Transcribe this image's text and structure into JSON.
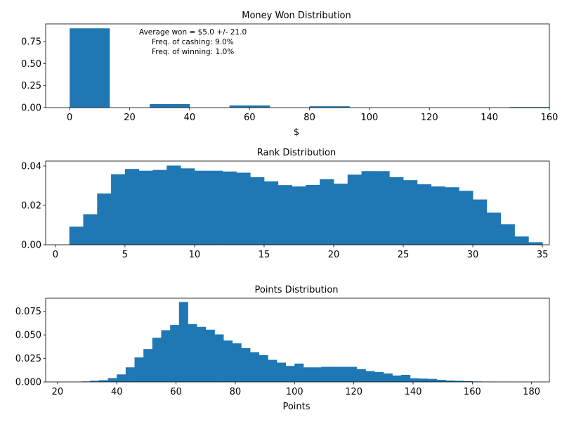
{
  "figure": {
    "background": "#ffffff",
    "bar_color": "#1f77b4"
  },
  "chart_data": [
    {
      "type": "histogram",
      "title": "Money Won Distribution",
      "xlabel": "$",
      "ylabel": "",
      "xlim": [
        -8,
        160
      ],
      "ylim": [
        0,
        0.95
      ],
      "xticks": [
        0,
        20,
        40,
        60,
        80,
        100,
        120,
        140,
        160
      ],
      "yticks": [
        "0.00",
        "0.25",
        "0.50",
        "0.75"
      ],
      "bins": [
        {
          "x0": 0,
          "x1": 13.3,
          "value": 0.9
        },
        {
          "x0": 26.7,
          "x1": 40,
          "value": 0.04
        },
        {
          "x0": 53.3,
          "x1": 66.7,
          "value": 0.025
        },
        {
          "x0": 80,
          "x1": 93.3,
          "value": 0.015
        },
        {
          "x0": 146.7,
          "x1": 160,
          "value": 0.007
        }
      ],
      "annotation": [
        "Average won = $5.0 +/- 21.0",
        "Freq. of cashing: 9.0%",
        "Freq. of winning: 1.0%"
      ]
    },
    {
      "type": "histogram",
      "title": "Rank Distribution",
      "xlabel": "",
      "ylabel": "",
      "xlim": [
        -0.7,
        35.5
      ],
      "ylim": [
        0,
        0.0425
      ],
      "xticks": [
        0,
        5,
        10,
        15,
        20,
        25,
        30,
        35
      ],
      "yticks": [
        "0.00",
        "0.02",
        "0.04"
      ],
      "bin_start": 1,
      "bin_width": 1,
      "values": [
        0.0092,
        0.0155,
        0.026,
        0.0358,
        0.0385,
        0.0376,
        0.038,
        0.0402,
        0.0388,
        0.0376,
        0.0376,
        0.0372,
        0.0366,
        0.0343,
        0.0322,
        0.0303,
        0.0296,
        0.0304,
        0.0333,
        0.031,
        0.0356,
        0.0374,
        0.0374,
        0.0343,
        0.0328,
        0.0307,
        0.0296,
        0.0292,
        0.0274,
        0.023,
        0.0163,
        0.0104,
        0.0042,
        0.0013
      ]
    },
    {
      "type": "histogram",
      "title": "Points Distribution",
      "xlabel": "Points",
      "ylabel": "",
      "xlim": [
        16,
        186
      ],
      "ylim": [
        0,
        0.089
      ],
      "xticks": [
        20,
        40,
        60,
        80,
        100,
        120,
        140,
        160,
        180
      ],
      "yticks": [
        "0.000",
        "0.025",
        "0.050",
        "0.075"
      ],
      "bin_start": 28,
      "bin_width": 3,
      "values": [
        0.0005,
        0.0012,
        0.0018,
        0.004,
        0.008,
        0.0155,
        0.026,
        0.035,
        0.047,
        0.055,
        0.0605,
        0.085,
        0.0615,
        0.0585,
        0.0555,
        0.0505,
        0.044,
        0.041,
        0.036,
        0.0315,
        0.0285,
        0.0235,
        0.0205,
        0.017,
        0.0195,
        0.0155,
        0.0155,
        0.016,
        0.016,
        0.016,
        0.016,
        0.0135,
        0.0115,
        0.0105,
        0.009,
        0.0068,
        0.0075,
        0.0038,
        0.0035,
        0.0032,
        0.0022,
        0.0015,
        0.0012,
        0.0008,
        0.0005,
        0.0003,
        0.0002,
        0.0001
      ]
    }
  ]
}
